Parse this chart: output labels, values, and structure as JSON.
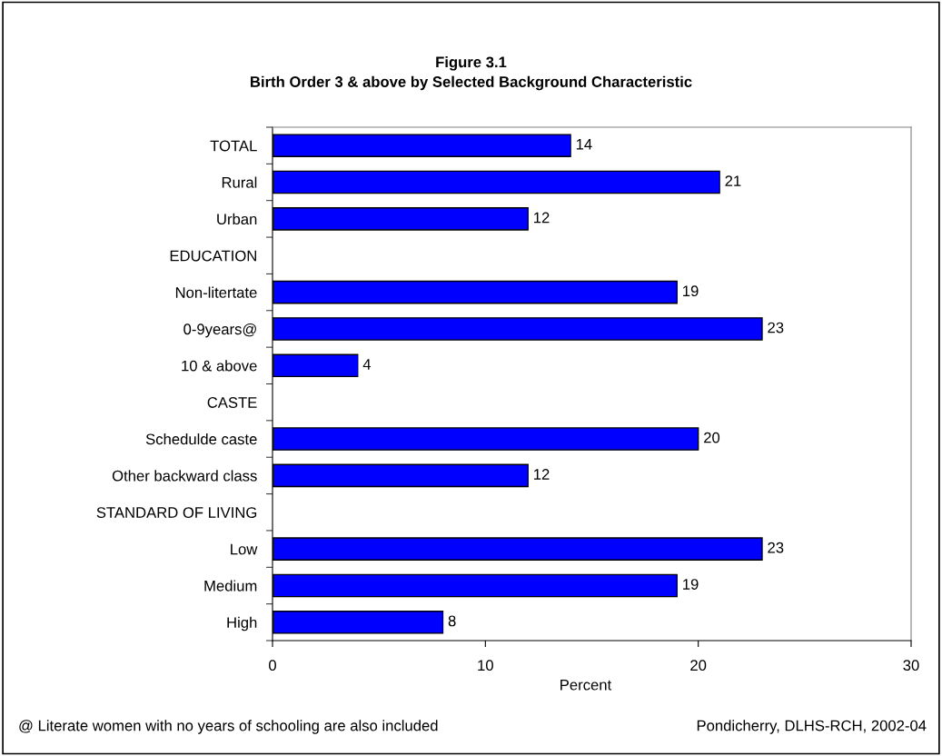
{
  "chart_data": {
    "type": "bar",
    "orientation": "horizontal",
    "title": "Figure 3.1\nBirth Order 3 & above by Selected Background Characteristic",
    "categories": [
      "TOTAL",
      "Rural",
      "Urban",
      "EDUCATION",
      "Non-litertate",
      "0-9years@",
      "10 & above",
      "CASTE",
      "Schedulde caste",
      "Other backward class",
      "STANDARD OF LIVING",
      "Low",
      "Medium",
      "High"
    ],
    "values": [
      14,
      21,
      12,
      null,
      19,
      23,
      4,
      null,
      20,
      12,
      null,
      23,
      19,
      8
    ],
    "color": "#0000ff",
    "xlabel": "Percent",
    "xlim": [
      0,
      30
    ],
    "xticks": [
      0,
      10,
      20,
      30
    ],
    "data_labels": true,
    "grid": false,
    "annotations": [
      "@ Literate women with no years of schooling are also included",
      "Pondicherry, DLHS-RCH, 2002-04"
    ]
  }
}
